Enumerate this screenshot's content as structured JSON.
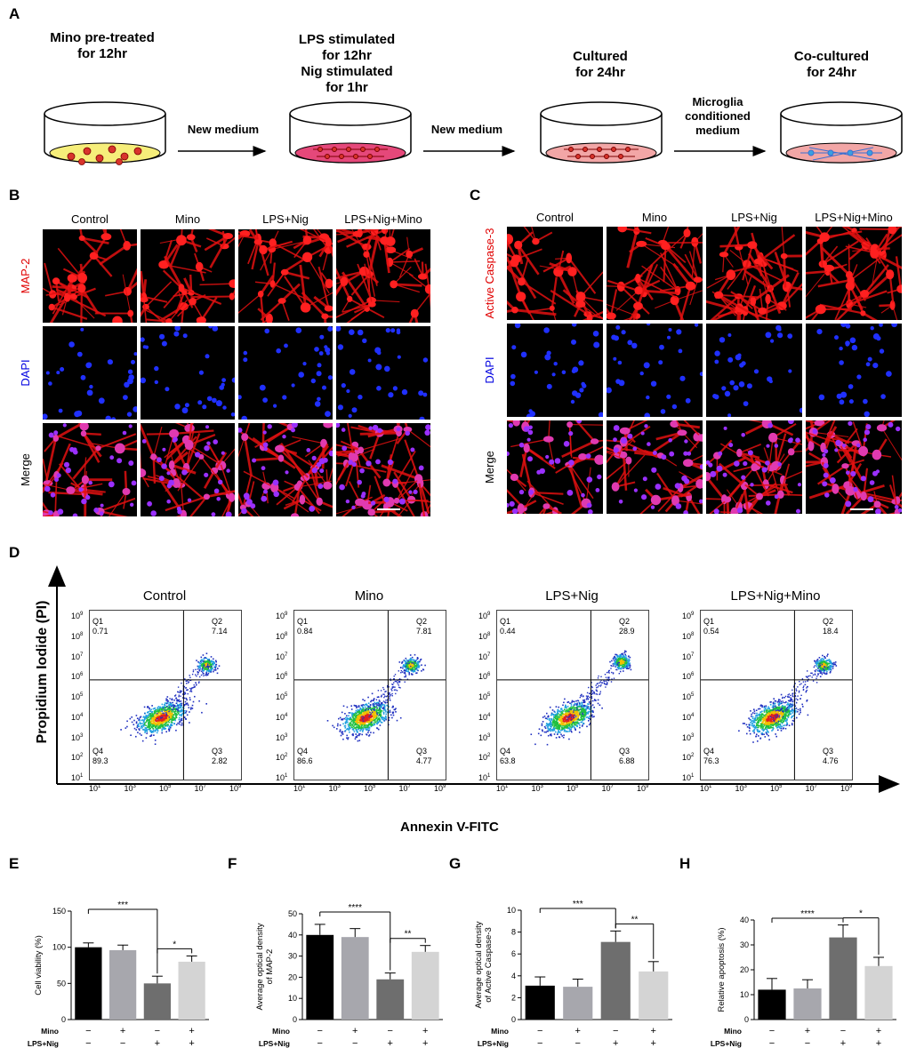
{
  "panelA": {
    "label": "A",
    "steps": [
      {
        "line1": "Mino pre-treated",
        "line2": "for 12hr",
        "line3": "",
        "line4": ""
      },
      {
        "line1": "LPS stimulated",
        "line2": "for 12hr",
        "line3": "Nig stimulated",
        "line4": "for 1hr"
      },
      {
        "line1": "Cultured",
        "line2": "for 24hr",
        "line3": "",
        "line4": ""
      },
      {
        "line1": "Co-cultured",
        "line2": "for 24hr",
        "line3": "",
        "line4": ""
      }
    ],
    "arrows": [
      {
        "line1": "New medium",
        "line2": "",
        "line3": ""
      },
      {
        "line1": "New medium",
        "line2": "",
        "line3": ""
      },
      {
        "line1": "Microglia",
        "line2": "conditioned",
        "line3": "medium"
      }
    ]
  },
  "panelB": {
    "label": "B",
    "columns": [
      "Control",
      "Mino",
      "LPS+Nig",
      "LPS+Nig+Mino"
    ],
    "rows": [
      "MAP-2",
      "DAPI",
      "Merge"
    ],
    "row_colors": [
      "#e00000",
      "#0000e0",
      "#000000"
    ]
  },
  "panelC": {
    "label": "C",
    "columns": [
      "Control",
      "Mino",
      "LPS+Nig",
      "LPS+Nig+Mino"
    ],
    "rows": [
      "Active Caspase-3",
      "DAPI",
      "Merge"
    ],
    "row_colors": [
      "#e00000",
      "#0000e0",
      "#000000"
    ]
  },
  "panelD": {
    "label": "D",
    "y_axis": "Propidium Iodide (PI)",
    "x_axis": "Annexin V-FITC",
    "plots": [
      {
        "title": "Control",
        "Q1": "0.71",
        "Q2": "7.14",
        "Q3": "2.82",
        "Q4": "89.3"
      },
      {
        "title": "Mino",
        "Q1": "0.84",
        "Q2": "7.81",
        "Q3": "4.77",
        "Q4": "86.6"
      },
      {
        "title": "LPS+Nig",
        "Q1": "0.44",
        "Q2": "28.9",
        "Q3": "6.88",
        "Q4": "63.8"
      },
      {
        "title": "LPS+Nig+Mino",
        "Q1": "0.54",
        "Q2": "18.4",
        "Q3": "4.76",
        "Q4": "76.3"
      }
    ],
    "quadrant_names": [
      "Q1",
      "Q2",
      "Q3",
      "Q4"
    ],
    "y_ticks": [
      "10",
      "10",
      "10",
      "10",
      "10",
      "10",
      "10",
      "10",
      "10"
    ],
    "y_tick_exps": [
      "9",
      "8",
      "7",
      "6",
      "5",
      "4",
      "3",
      "2",
      "1"
    ],
    "x_ticks": [
      "10",
      "10",
      "10",
      "10",
      "10"
    ],
    "x_tick_exps": [
      "1",
      "3",
      "5",
      "7",
      "9"
    ]
  },
  "chart_data": [
    {
      "type": "bar",
      "panel": "E",
      "ylabel": "Cell viability (%)",
      "ylim": [
        0,
        150
      ],
      "yticks": [
        0,
        50,
        100,
        150
      ],
      "values": [
        100,
        96,
        50,
        80
      ],
      "errors": [
        6,
        7,
        10,
        8
      ],
      "colors": [
        "#000000",
        "#a7a7ad",
        "#6e6e6e",
        "#d4d4d4"
      ],
      "mino": [
        "−",
        "+",
        "−",
        "+"
      ],
      "lps_nig": [
        "−",
        "−",
        "+",
        "+"
      ],
      "sig": [
        {
          "from": 0,
          "to": 2,
          "label": "***"
        },
        {
          "from": 2,
          "to": 3,
          "label": "*"
        }
      ]
    },
    {
      "type": "bar",
      "panel": "F",
      "ylabel": "Average optical density\nof MAP-2",
      "ylim": [
        0,
        50
      ],
      "yticks": [
        0,
        10,
        20,
        30,
        40,
        50
      ],
      "values": [
        40,
        39,
        19,
        32
      ],
      "errors": [
        5,
        4,
        3,
        3
      ],
      "colors": [
        "#000000",
        "#a7a7ad",
        "#6e6e6e",
        "#d4d4d4"
      ],
      "mino": [
        "−",
        "+",
        "−",
        "+"
      ],
      "lps_nig": [
        "−",
        "−",
        "+",
        "+"
      ],
      "sig": [
        {
          "from": 0,
          "to": 2,
          "label": "****"
        },
        {
          "from": 2,
          "to": 3,
          "label": "**"
        }
      ]
    },
    {
      "type": "bar",
      "panel": "G",
      "ylabel": "Average optical density\nof Active Caspase-3",
      "ylim": [
        0,
        10
      ],
      "yticks": [
        0,
        2,
        4,
        6,
        8,
        10
      ],
      "values": [
        3.1,
        3.0,
        7.1,
        4.4
      ],
      "errors": [
        0.8,
        0.7,
        1.0,
        0.9
      ],
      "colors": [
        "#000000",
        "#a7a7ad",
        "#6e6e6e",
        "#d4d4d4"
      ],
      "mino": [
        "−",
        "+",
        "−",
        "+"
      ],
      "lps_nig": [
        "−",
        "−",
        "+",
        "+"
      ],
      "sig": [
        {
          "from": 0,
          "to": 2,
          "label": "***"
        },
        {
          "from": 2,
          "to": 3,
          "label": "**"
        }
      ]
    },
    {
      "type": "bar",
      "panel": "H",
      "ylabel": "Relative apoptosis (%)",
      "ylim": [
        0,
        40
      ],
      "yticks": [
        0,
        10,
        20,
        30,
        40
      ],
      "values": [
        12,
        12.5,
        33,
        21.5
      ],
      "errors": [
        4.5,
        3.5,
        5,
        3.5
      ],
      "colors": [
        "#000000",
        "#a7a7ad",
        "#6e6e6e",
        "#d4d4d4"
      ],
      "mino": [
        "−",
        "+",
        "−",
        "+"
      ],
      "lps_nig": [
        "−",
        "−",
        "+",
        "+"
      ],
      "sig": [
        {
          "from": 0,
          "to": 2,
          "label": "****"
        },
        {
          "from": 2,
          "to": 3,
          "label": "*"
        }
      ]
    }
  ],
  "bar_row_labels": {
    "mino": "Mino",
    "lps_nig": "LPS+Nig"
  }
}
